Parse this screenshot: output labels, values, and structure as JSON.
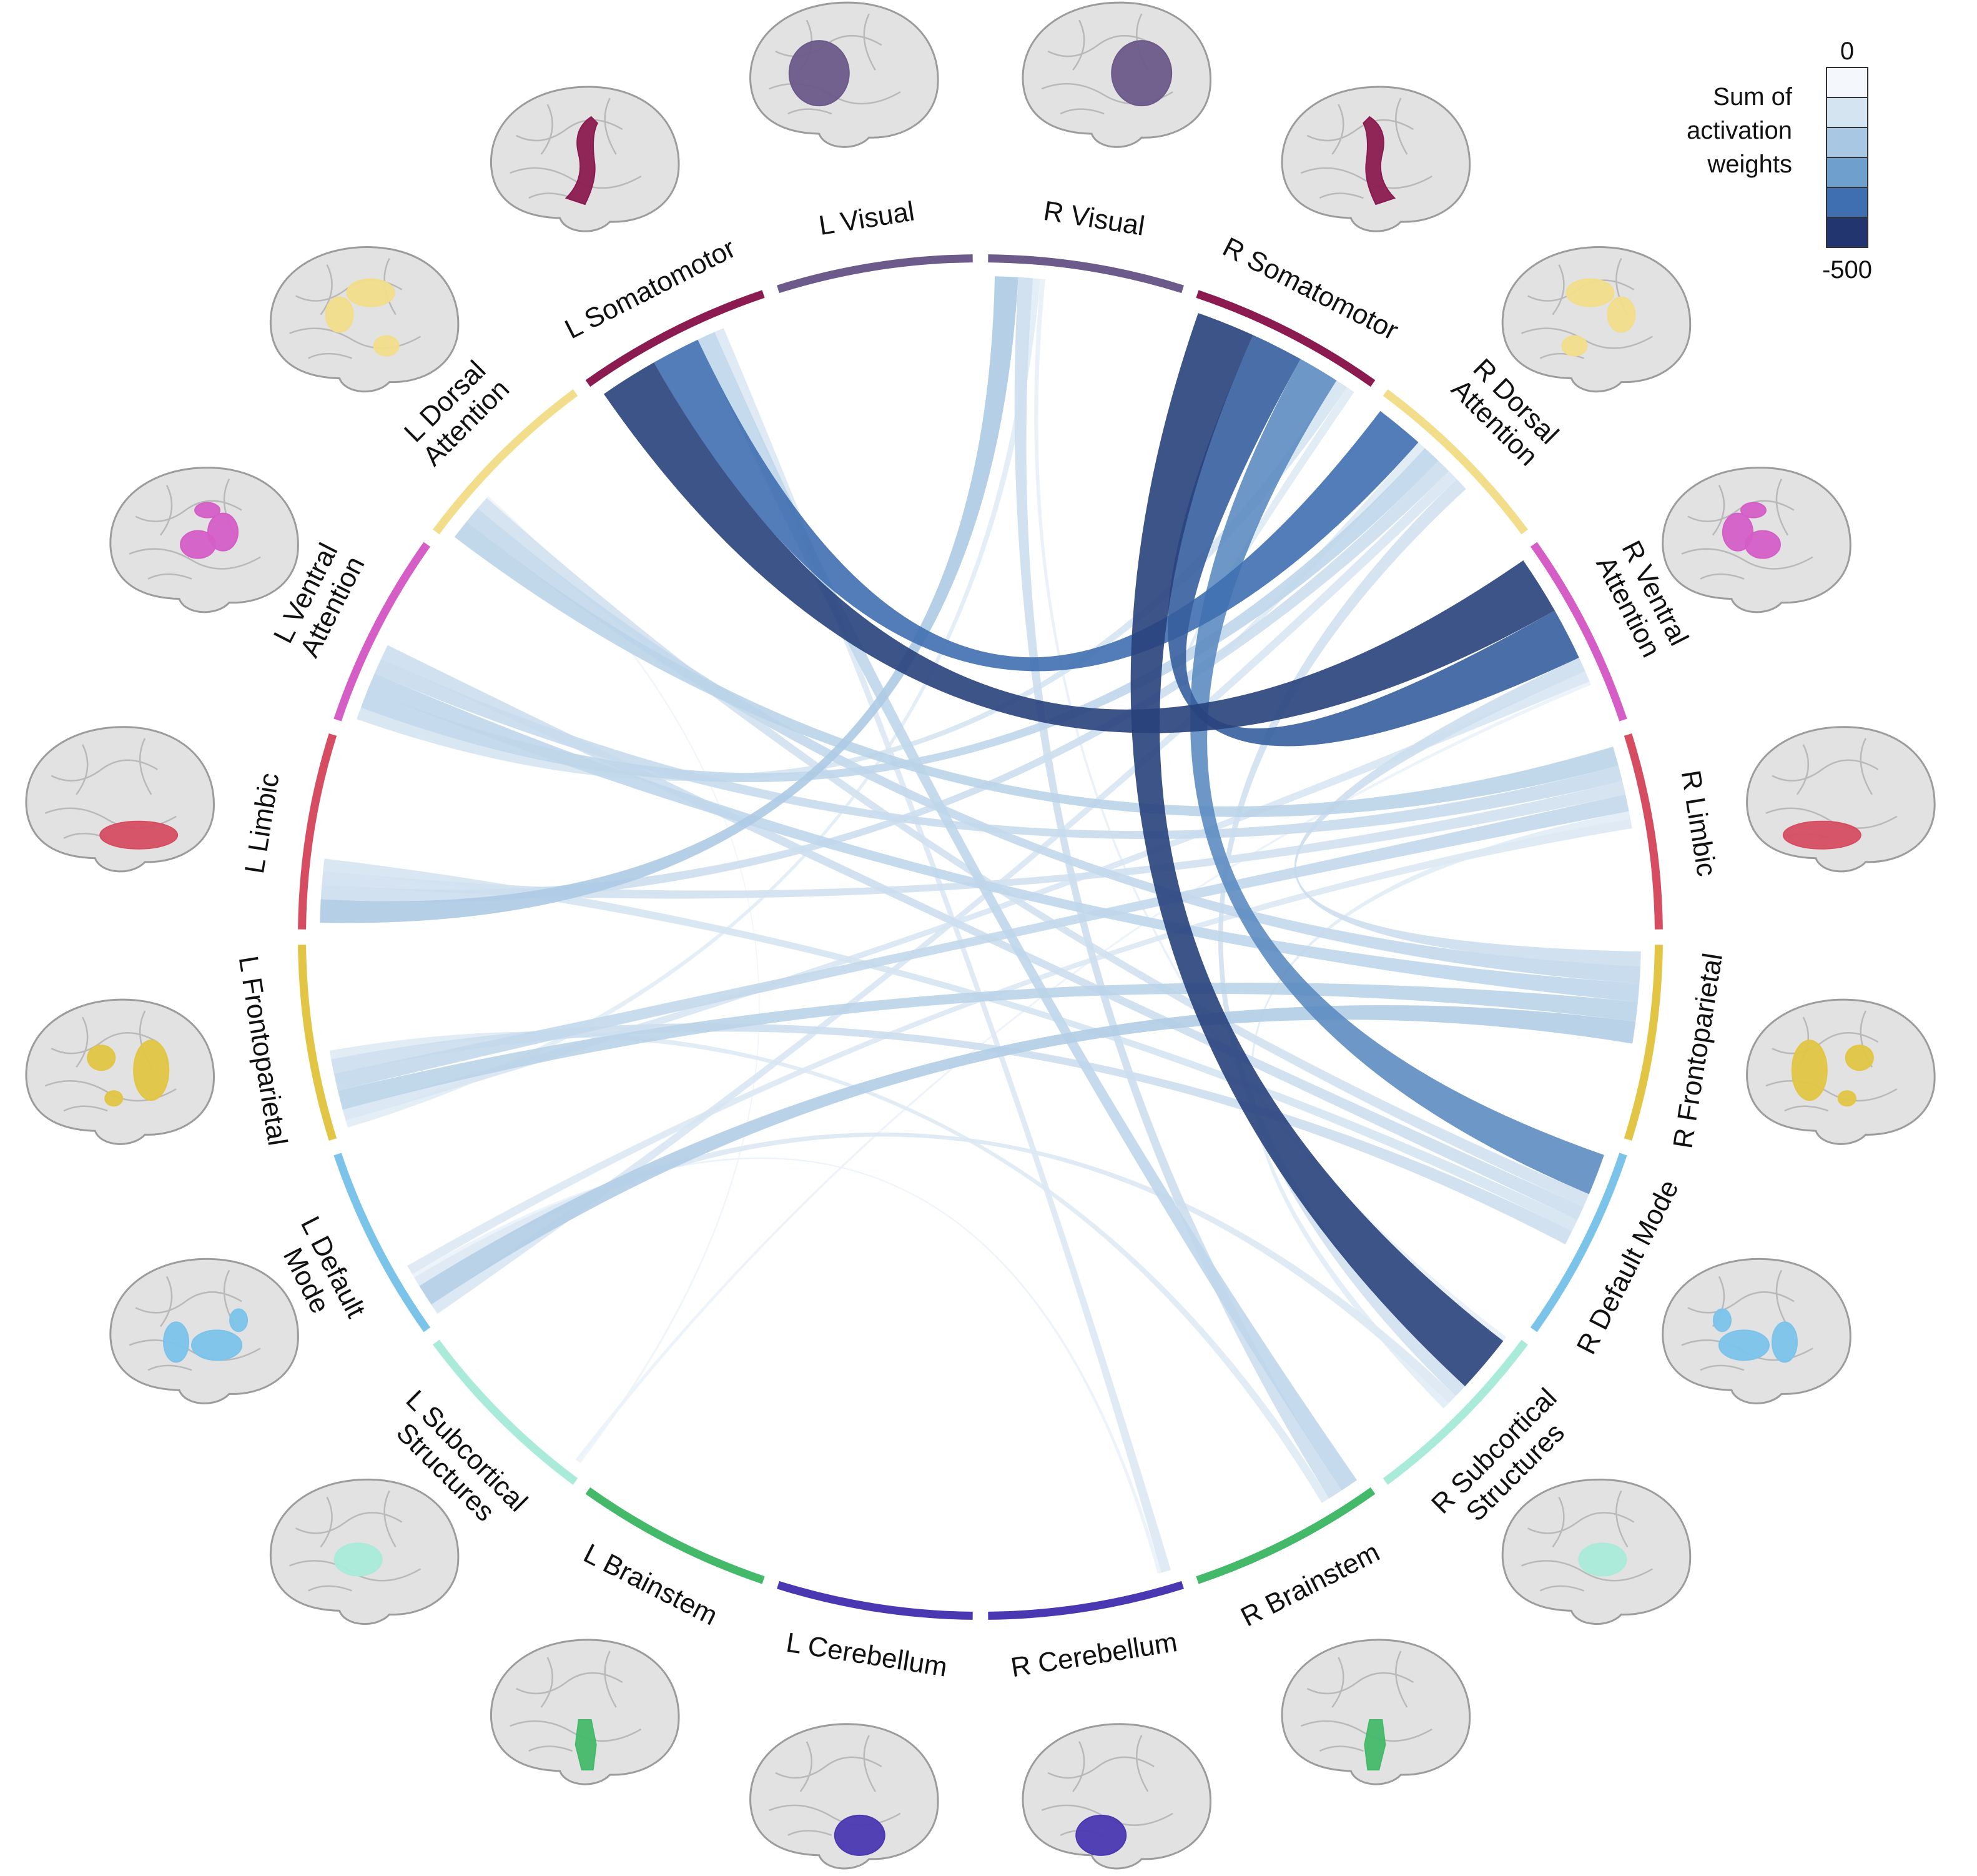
{
  "legend": {
    "title_lines": [
      "Sum of",
      "activation",
      "weights"
    ],
    "max_label": "0",
    "min_label": "-500",
    "colors": [
      "#f4f8fc",
      "#d5e4f1",
      "#a8c7e2",
      "#6f9fcc",
      "#3f6fb0",
      "#22356f"
    ]
  },
  "segments": [
    {
      "id": "LVis",
      "label_lines": [
        "L Visual"
      ],
      "color": "#6b5a8a",
      "region": "visual",
      "side": "left"
    },
    {
      "id": "LSom",
      "label_lines": [
        "L Somatomotor"
      ],
      "color": "#8b1a50",
      "region": "somatomotor",
      "side": "left"
    },
    {
      "id": "LDA",
      "label_lines": [
        "L Dorsal",
        "Attention"
      ],
      "color": "#f1dd8a",
      "region": "dorsal",
      "side": "left"
    },
    {
      "id": "LVA",
      "label_lines": [
        "L Ventral",
        "Attention"
      ],
      "color": "#d45ec6",
      "region": "ventral",
      "side": "left"
    },
    {
      "id": "LLim",
      "label_lines": [
        "L Limbic"
      ],
      "color": "#d64d62",
      "region": "limbic",
      "side": "left"
    },
    {
      "id": "LFP",
      "label_lines": [
        "L Frontoparietal"
      ],
      "color": "#e2c544",
      "region": "frontoparietal",
      "side": "left"
    },
    {
      "id": "LDM",
      "label_lines": [
        "L Default",
        "Mode"
      ],
      "color": "#7cc3ea",
      "region": "default",
      "side": "left"
    },
    {
      "id": "LSub",
      "label_lines": [
        "L Subcortical",
        "Structures"
      ],
      "color": "#a9ead9",
      "region": "subcortical",
      "side": "left"
    },
    {
      "id": "LBr",
      "label_lines": [
        "L Brainstem"
      ],
      "color": "#45b96a",
      "region": "brainstem",
      "side": "left"
    },
    {
      "id": "LCb",
      "label_lines": [
        "L Cerebellum"
      ],
      "color": "#4a37b2",
      "region": "cerebellum",
      "side": "left"
    },
    {
      "id": "RCb",
      "label_lines": [
        "R Cerebellum"
      ],
      "color": "#4a37b2",
      "region": "cerebellum",
      "side": "right"
    },
    {
      "id": "RBr",
      "label_lines": [
        "R Brainstem"
      ],
      "color": "#45b96a",
      "region": "brainstem",
      "side": "right"
    },
    {
      "id": "RSub",
      "label_lines": [
        "R Subcortical",
        "Structures"
      ],
      "color": "#a9ead9",
      "region": "subcortical",
      "side": "right"
    },
    {
      "id": "RDM",
      "label_lines": [
        "R Default Mode"
      ],
      "color": "#7cc3ea",
      "region": "default",
      "side": "right"
    },
    {
      "id": "RFP",
      "label_lines": [
        "R Frontoparietal"
      ],
      "color": "#e2c544",
      "region": "frontoparietal",
      "side": "right"
    },
    {
      "id": "RLim",
      "label_lines": [
        "R Limbic"
      ],
      "color": "#d64d62",
      "region": "limbic",
      "side": "right"
    },
    {
      "id": "RVA",
      "label_lines": [
        "R Ventral",
        "Attention"
      ],
      "color": "#d45ec6",
      "region": "ventral",
      "side": "right"
    },
    {
      "id": "RDA",
      "label_lines": [
        "R Dorsal",
        "Attention"
      ],
      "color": "#f1dd8a",
      "region": "dorsal",
      "side": "right"
    },
    {
      "id": "RSom",
      "label_lines": [
        "R Somatomotor"
      ],
      "color": "#8b1a50",
      "region": "somatomotor",
      "side": "right"
    },
    {
      "id": "RVis",
      "label_lines": [
        "R Visual"
      ],
      "color": "#6b5a8a",
      "region": "visual",
      "side": "right"
    }
  ],
  "chords": [
    {
      "from": "LSom",
      "to": "RVA",
      "weight": -480
    },
    {
      "from": "LSom",
      "to": "RDA",
      "weight": -400
    },
    {
      "from": "LSom",
      "to": "RBr",
      "weight": -150
    },
    {
      "from": "LSom",
      "to": "RCb",
      "weight": -80
    },
    {
      "from": "RVis",
      "to": "LLim",
      "weight": -190
    },
    {
      "from": "RVis",
      "to": "RBr",
      "weight": -120
    },
    {
      "from": "RVis",
      "to": "LFP",
      "weight": -60
    },
    {
      "from": "RVis",
      "to": "RSub",
      "weight": -40
    },
    {
      "from": "RSom",
      "to": "RSub",
      "weight": -480
    },
    {
      "from": "RSom",
      "to": "RVA",
      "weight": -430
    },
    {
      "from": "RSom",
      "to": "RDM",
      "weight": -340
    },
    {
      "from": "RSom",
      "to": "LVA",
      "weight": -100
    },
    {
      "from": "RSom",
      "to": "RDA",
      "weight": -70
    },
    {
      "from": "RDA",
      "to": "LVA",
      "weight": -150
    },
    {
      "from": "RDA",
      "to": "LLim",
      "weight": -120
    },
    {
      "from": "RDA",
      "to": "LDM",
      "weight": -90
    },
    {
      "from": "RDA",
      "to": "RSub",
      "weight": -110
    },
    {
      "from": "RVA",
      "to": "RFP",
      "weight": -120
    },
    {
      "from": "RVA",
      "to": "LFP",
      "weight": -90
    },
    {
      "from": "LDA",
      "to": "RLim",
      "weight": -160
    },
    {
      "from": "LDA",
      "to": "RFP",
      "weight": -140
    },
    {
      "from": "LDA",
      "to": "RDM",
      "weight": -110
    },
    {
      "from": "LVA",
      "to": "RFP",
      "weight": -150
    },
    {
      "from": "LVA",
      "to": "RLim",
      "weight": -130
    },
    {
      "from": "LVA",
      "to": "RDM",
      "weight": -120
    },
    {
      "from": "LLim",
      "to": "RLim",
      "weight": -110
    },
    {
      "from": "LLim",
      "to": "RDM",
      "weight": -100
    },
    {
      "from": "LFP",
      "to": "RFP",
      "weight": -160
    },
    {
      "from": "LFP",
      "to": "RLim",
      "weight": -140
    },
    {
      "from": "LFP",
      "to": "RDM",
      "weight": -120
    },
    {
      "from": "LFP",
      "to": "RBr",
      "weight": -70
    },
    {
      "from": "LDM",
      "to": "RFP",
      "weight": -180
    },
    {
      "from": "LDM",
      "to": "RSub",
      "weight": -80
    },
    {
      "from": "LDM",
      "to": "RCb",
      "weight": -30
    },
    {
      "from": "LSub",
      "to": "LDA",
      "weight": -20
    },
    {
      "from": "LSub",
      "to": "RVA",
      "weight": -30
    },
    {
      "from": "RLim",
      "to": "RSub",
      "weight": -60
    },
    {
      "from": "RLim",
      "to": "LDM",
      "weight": -80
    }
  ]
}
